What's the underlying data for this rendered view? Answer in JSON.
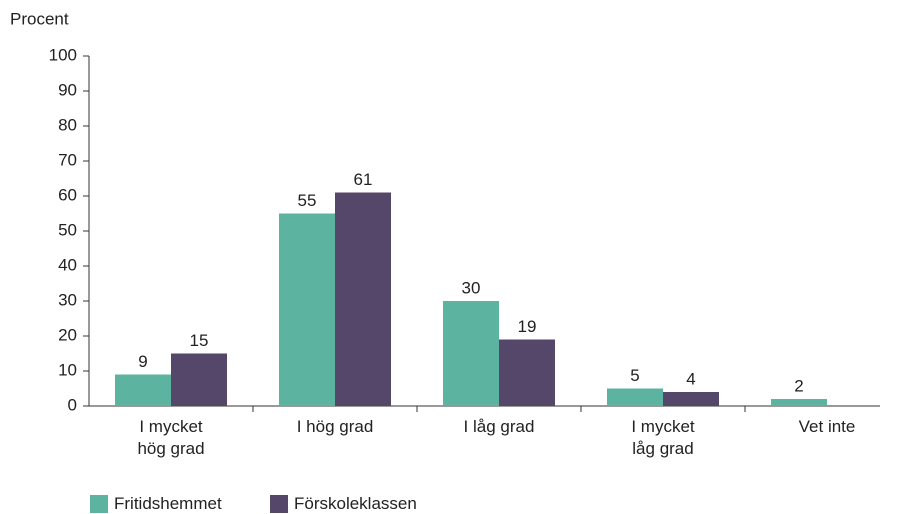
{
  "chart_data": {
    "type": "bar",
    "y_axis_label": "Procent",
    "categories": [
      "I mycket\nhög grad",
      "I hög grad",
      "I låg grad",
      "I mycket\nlåg grad",
      "Vet inte"
    ],
    "series": [
      {
        "name": "Fritidshemmet",
        "color": "#5bb3a0",
        "values": [
          9,
          55,
          30,
          5,
          2
        ]
      },
      {
        "name": "Förskoleklassen",
        "color": "#54476a",
        "values": [
          15,
          61,
          19,
          4,
          null
        ]
      }
    ],
    "ylim": [
      0,
      100
    ],
    "yticks": [
      0,
      10,
      20,
      30,
      40,
      50,
      60,
      70,
      80,
      90,
      100
    ],
    "grid": false,
    "legend": "bottom-left"
  }
}
